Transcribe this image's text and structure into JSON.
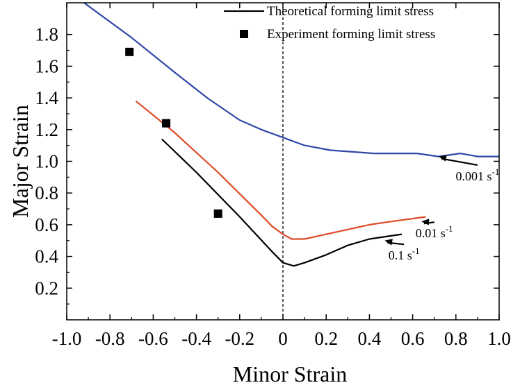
{
  "chart_data": {
    "type": "line",
    "xlabel": "Minor Strain",
    "ylabel": "Major Strain",
    "xlim": [
      -1.0,
      1.0
    ],
    "ylim": [
      0.0,
      2.0
    ],
    "xticks": [
      -1.0,
      -0.8,
      -0.6,
      -0.4,
      -0.2,
      0,
      0.2,
      0.4,
      0.6,
      0.8,
      1.0
    ],
    "xtick_labels": [
      "-1.0",
      "-0.8",
      "-0.6",
      "-0.4",
      "-0.2",
      "0",
      "0.2",
      "0.4",
      "0.6",
      "0.8",
      "1.0"
    ],
    "yticks": [
      0.2,
      0.4,
      0.6,
      0.8,
      1.0,
      1.2,
      1.4,
      1.6,
      1.8
    ],
    "ytick_labels": [
      "0.2",
      "0.4",
      "0.6",
      "0.8",
      "1.0",
      "1.2",
      "1.4",
      "1.6",
      "1.8"
    ],
    "grid": false,
    "legend_position": "top-right",
    "legend": [
      {
        "label": "Theoretical forming limit stress",
        "marker": "line",
        "color": "#000000"
      },
      {
        "label": "Experiment forming limit stress",
        "marker": "square",
        "color": "#000000"
      }
    ],
    "reference_line": {
      "x": 0,
      "style": "dashed",
      "color": "#000000"
    },
    "series": [
      {
        "color": "#2e46a8",
        "x": [
          -0.92,
          -0.7,
          -0.5,
          -0.35,
          -0.2,
          -0.1,
          0.0,
          0.1,
          0.22,
          0.42,
          0.62,
          0.72,
          0.82,
          0.9,
          1.0
        ],
        "y": [
          2.0,
          1.78,
          1.56,
          1.4,
          1.26,
          1.2,
          1.15,
          1.1,
          1.07,
          1.05,
          1.05,
          1.03,
          1.05,
          1.03,
          1.03
        ]
      },
      {
        "color": "#e04a26",
        "x": [
          -0.68,
          -0.5,
          -0.3,
          -0.1,
          -0.05,
          0.0,
          0.04,
          0.1,
          0.2,
          0.3,
          0.4,
          0.5,
          0.66
        ],
        "y": [
          1.38,
          1.18,
          0.93,
          0.66,
          0.59,
          0.54,
          0.51,
          0.51,
          0.54,
          0.57,
          0.6,
          0.62,
          0.65
        ]
      },
      {
        "color": "#000000",
        "x": [
          -0.56,
          -0.4,
          -0.2,
          -0.05,
          0.0,
          0.05,
          0.1,
          0.2,
          0.3,
          0.4,
          0.5,
          0.55
        ],
        "y": [
          1.14,
          0.93,
          0.65,
          0.43,
          0.36,
          0.34,
          0.36,
          0.41,
          0.47,
          0.51,
          0.53,
          0.54
        ]
      }
    ],
    "experiment_points": {
      "x": [
        -0.71,
        -0.54,
        -0.3
      ],
      "y": [
        1.69,
        1.24,
        0.67
      ]
    },
    "annotations": [
      {
        "text": "0.001 s",
        "sup": "-1",
        "target": [
          0.72,
          1.03
        ],
        "label_at": [
          0.9,
          0.88
        ]
      },
      {
        "text": "0.01 s",
        "sup": "-1",
        "target": [
          0.64,
          0.62
        ],
        "label_at": [
          0.7,
          0.52
        ]
      },
      {
        "text": "0.1 s",
        "sup": "-1",
        "target": [
          0.47,
          0.5
        ],
        "label_at": [
          0.56,
          0.38
        ]
      }
    ]
  }
}
